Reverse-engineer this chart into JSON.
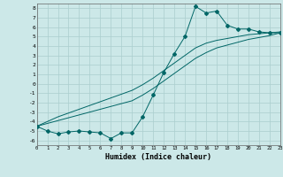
{
  "title": "",
  "xlabel": "Humidex (Indice chaleur)",
  "bg_color": "#cce8e8",
  "grid_color": "#aacece",
  "line_color": "#006666",
  "x_data": [
    0,
    1,
    2,
    3,
    4,
    5,
    6,
    7,
    8,
    9,
    10,
    11,
    12,
    13,
    14,
    15,
    16,
    17,
    18,
    19,
    20,
    21,
    22,
    23
  ],
  "y_main": [
    -4.5,
    -5.0,
    -5.3,
    -5.1,
    -5.0,
    -5.1,
    -5.2,
    -5.8,
    -5.2,
    -5.2,
    -3.5,
    -1.2,
    1.2,
    3.2,
    5.0,
    8.2,
    7.5,
    7.7,
    6.2,
    5.8,
    5.8,
    5.5,
    5.4,
    5.4
  ],
  "y_line1": [
    -4.5,
    -4.2,
    -3.9,
    -3.6,
    -3.3,
    -3.0,
    -2.7,
    -2.4,
    -2.1,
    -1.8,
    -1.2,
    -0.5,
    0.3,
    1.1,
    1.9,
    2.7,
    3.3,
    3.8,
    4.1,
    4.4,
    4.7,
    4.9,
    5.1,
    5.4
  ],
  "y_line2": [
    -4.5,
    -4.0,
    -3.5,
    -3.1,
    -2.7,
    -2.3,
    -1.9,
    -1.5,
    -1.1,
    -0.7,
    -0.1,
    0.6,
    1.4,
    2.2,
    3.0,
    3.8,
    4.3,
    4.6,
    4.8,
    5.0,
    5.2,
    5.3,
    5.4,
    5.5
  ],
  "xlim": [
    0,
    23
  ],
  "ylim": [
    -6.5,
    8.5
  ],
  "yticks": [
    -6,
    -5,
    -4,
    -3,
    -2,
    -1,
    0,
    1,
    2,
    3,
    4,
    5,
    6,
    7,
    8
  ],
  "xticks": [
    0,
    1,
    2,
    3,
    4,
    5,
    6,
    7,
    8,
    9,
    10,
    11,
    12,
    13,
    14,
    15,
    16,
    17,
    18,
    19,
    20,
    21,
    22,
    23
  ]
}
